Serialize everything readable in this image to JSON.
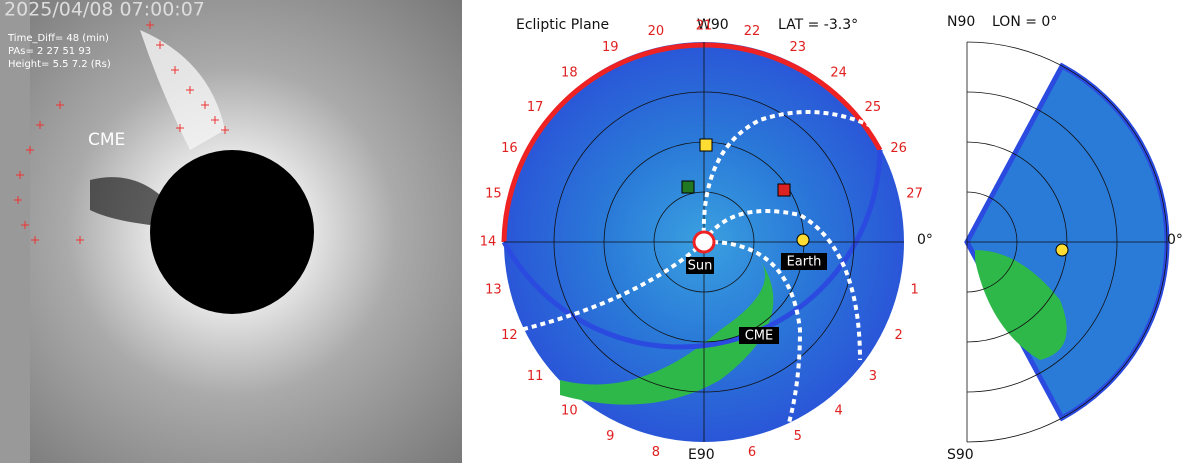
{
  "coronagraph": {
    "timestamp": "2025/04/08 07:00:07",
    "time_diff": "Time_Diff= 48 (min)",
    "pas": "PAs=  2 27 51 93",
    "height": "Height=  5.5 7.2 (Rs)",
    "cme_label": "CME"
  },
  "ecliptic": {
    "title": "Ecliptic Plane",
    "top": "W90",
    "lat": "LAT = -3.3°",
    "bottom": "E90",
    "right": "0°",
    "sun": "Sun",
    "earth": "Earth",
    "cme": "CME",
    "ring_labels": [
      "1",
      "2",
      "3",
      "4",
      "5",
      "6",
      "8",
      "9",
      "10",
      "11",
      "12",
      "13",
      "14",
      "15",
      "16",
      "17",
      "18",
      "19",
      "20",
      "21",
      "22",
      "23",
      "24",
      "25",
      "26",
      "27"
    ]
  },
  "meridional": {
    "top": "N90",
    "lon": "LON = 0°",
    "bottom": "S90",
    "right": "0°"
  }
}
